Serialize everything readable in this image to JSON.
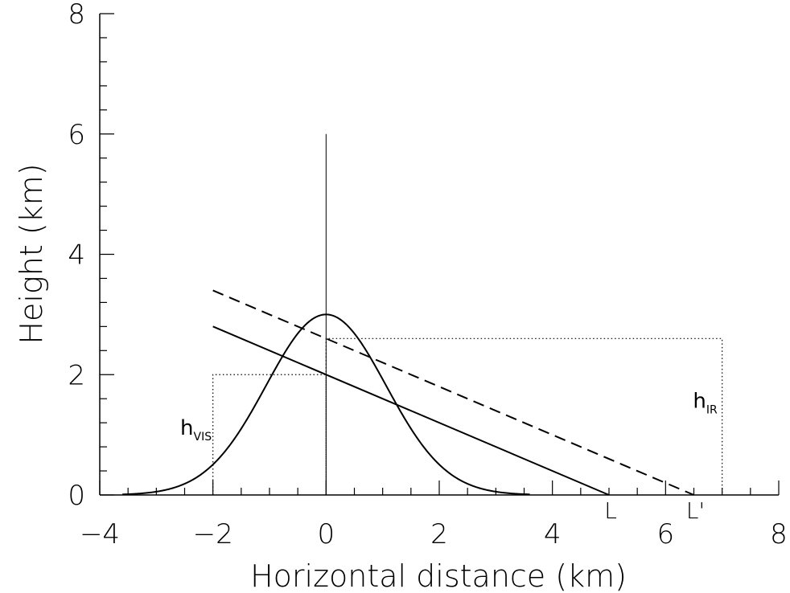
{
  "chart_data": {
    "type": "line",
    "title": "",
    "xlabel": "Horizontal distance (km)",
    "ylabel": "Height (km)",
    "xlim": [
      -4,
      8
    ],
    "ylim": [
      0,
      8
    ],
    "grid": false,
    "xticks": [
      -4,
      -2,
      0,
      2,
      4,
      6,
      8
    ],
    "xtick_labels": [
      "−4",
      "−2",
      "0",
      "2",
      "4",
      "6",
      "8"
    ],
    "yticks": [
      0,
      2,
      4,
      6,
      8
    ],
    "ytick_labels": [
      "0",
      "2",
      "4",
      "6",
      "8"
    ],
    "mountain_profile": {
      "shape": "gaussian",
      "peak_x": 0,
      "peak_height": 3,
      "x_range": [
        -3.6,
        3.6
      ],
      "points": [
        {
          "x": -3.6,
          "y": 0.01
        },
        {
          "x": -3.0,
          "y": 0.07
        },
        {
          "x": -2.5,
          "y": 0.2
        },
        {
          "x": -2.0,
          "y": 0.45
        },
        {
          "x": -1.5,
          "y": 0.96
        },
        {
          "x": -1.0,
          "y": 1.7
        },
        {
          "x": -0.5,
          "y": 2.5
        },
        {
          "x": 0,
          "y": 3.0
        },
        {
          "x": 0.5,
          "y": 2.5
        },
        {
          "x": 1.0,
          "y": 1.7
        },
        {
          "x": 1.5,
          "y": 0.96
        },
        {
          "x": 2.0,
          "y": 0.45
        },
        {
          "x": 2.5,
          "y": 0.2
        },
        {
          "x": 3.0,
          "y": 0.07
        },
        {
          "x": 3.6,
          "y": 0.01
        }
      ]
    },
    "vertical_line": {
      "x": 0,
      "y_from": 0,
      "y_to": 6
    },
    "series": [
      {
        "style": "solid",
        "values": [
          {
            "x": -2,
            "y": 2.8
          },
          {
            "x": 5,
            "y": 0
          }
        ]
      },
      {
        "style": "dashed",
        "values": [
          {
            "x": -2,
            "y": 3.4
          },
          {
            "x": 6.5,
            "y": 0
          }
        ]
      }
    ],
    "dotted_boxes": [
      {
        "x_from": -2,
        "x_to": 0,
        "height": 2.0,
        "label": "h",
        "label_sub": "VIS",
        "label_x": -2.3,
        "label_y": 1.0
      },
      {
        "x_from": 0,
        "x_to": 7,
        "height": 2.6,
        "label": "h",
        "label_sub": "IR",
        "label_x": 6.7,
        "label_y": 1.45
      }
    ],
    "point_labels": [
      {
        "text": "L",
        "x": 5.0
      },
      {
        "text": "L'",
        "x": 6.5
      }
    ]
  }
}
